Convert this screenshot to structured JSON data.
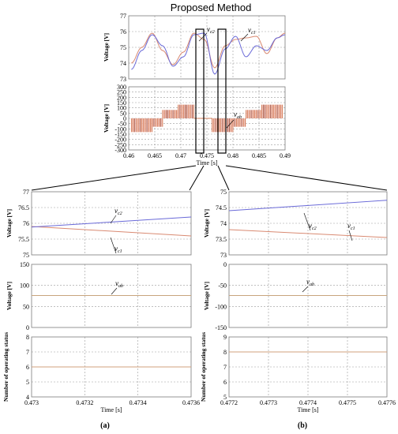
{
  "figure_title": "Proposed Method",
  "colors": {
    "vc1": "#d98a72",
    "vc2": "#6a6ad8",
    "vab": "#c85a2a",
    "status": "#d2a07d",
    "vab_steady": "#c8a57d",
    "grid": "#9a9a9a"
  },
  "chart_data": [
    {
      "id": "top-cap-voltages",
      "type": "line",
      "xlim": [
        0.46,
        0.49
      ],
      "ylim": [
        73,
        77
      ],
      "yticks": [
        "77",
        "76",
        "75",
        "74",
        "73"
      ],
      "ylabel": "Voltage [V]",
      "series": [
        {
          "name": "vc1",
          "x": [
            0.4605,
            0.4625,
            0.4645,
            0.4665,
            0.4685,
            0.4705,
            0.4725,
            0.4745,
            0.4765,
            0.4785,
            0.4805,
            0.4825,
            0.4845,
            0.4865,
            0.4885,
            0.49
          ],
          "y": [
            74.0,
            75.0,
            75.9,
            74.8,
            73.9,
            74.7,
            75.9,
            75.5,
            73.7,
            75.1,
            75.5,
            75.6,
            75.7,
            74.6,
            75.6,
            75.9
          ]
        },
        {
          "name": "vc2",
          "x": [
            0.4605,
            0.4625,
            0.4645,
            0.4665,
            0.4685,
            0.4705,
            0.4725,
            0.4745,
            0.4765,
            0.4785,
            0.4805,
            0.4825,
            0.4845,
            0.4865,
            0.4885,
            0.49
          ],
          "y": [
            73.6,
            74.8,
            75.8,
            75.1,
            73.8,
            74.4,
            75.8,
            75.9,
            73.3,
            74.9,
            75.7,
            74.4,
            75.1,
            74.8,
            75.6,
            75.8
          ]
        }
      ],
      "annotations": [
        "vc2",
        "vc1"
      ]
    },
    {
      "id": "top-vab",
      "type": "line",
      "xlim": [
        0.46,
        0.49
      ],
      "ylim": [
        -300,
        300
      ],
      "yticks": [
        "300",
        "250",
        "200",
        "150",
        "100",
        "50",
        "0",
        "-50",
        "-100",
        "-150",
        "-200",
        "-250",
        "-300"
      ],
      "xticks": [
        "0.46",
        "0.465",
        "0.47",
        "0.475",
        "0.48",
        "0.485",
        "0.49"
      ],
      "xlabel": "Time [s]",
      "ylabel": "Voltage [V]",
      "series": [
        {
          "name": "vab",
          "segments": [
            {
              "x0": 0.4605,
              "x1": 0.4645,
              "level": -100
            },
            {
              "x0": 0.4645,
              "x1": 0.4665,
              "level": -50
            },
            {
              "x0": 0.4665,
              "x1": 0.4695,
              "level": 50
            },
            {
              "x0": 0.4695,
              "x1": 0.4725,
              "level": 100
            },
            {
              "x0": 0.4725,
              "x1": 0.476,
              "level": 0
            },
            {
              "x0": 0.476,
              "x1": 0.48,
              "level": -100
            },
            {
              "x0": 0.48,
              "x1": 0.4825,
              "level": -50
            },
            {
              "x0": 0.4825,
              "x1": 0.4855,
              "level": 50
            },
            {
              "x0": 0.4855,
              "x1": 0.4895,
              "level": 100
            }
          ]
        }
      ],
      "annotations": [
        "vab"
      ]
    },
    {
      "id": "a-cap-voltages",
      "type": "line",
      "xlim": [
        0.473,
        0.4736
      ],
      "ylim": [
        75,
        77
      ],
      "yticks": [
        "77",
        "76.5",
        "76",
        "75.5",
        "75"
      ],
      "ylabel": "Voltage [V]",
      "series": [
        {
          "name": "vc1",
          "x": [
            0.473,
            0.4736
          ],
          "y": [
            75.9,
            75.6
          ]
        },
        {
          "name": "vc2",
          "x": [
            0.473,
            0.4736
          ],
          "y": [
            75.88,
            76.2
          ]
        }
      ],
      "annotations": [
        "vc2",
        "vc1"
      ]
    },
    {
      "id": "a-vab",
      "type": "line",
      "xlim": [
        0.473,
        0.4736
      ],
      "ylim": [
        0,
        150
      ],
      "yticks": [
        "150",
        "100",
        "50",
        "0"
      ],
      "ylabel": "Voltage [V]",
      "series": [
        {
          "name": "vab",
          "x": [
            0.473,
            0.4736
          ],
          "y": [
            76,
            76
          ]
        }
      ],
      "annotations": [
        "vab"
      ]
    },
    {
      "id": "a-status",
      "type": "line",
      "xlim": [
        0.473,
        0.4736
      ],
      "ylim": [
        4,
        8
      ],
      "yticks": [
        "8",
        "7",
        "6",
        "5",
        "4"
      ],
      "xticks": [
        "0.473",
        "0.4732",
        "0.4734",
        "0.4736"
      ],
      "xlabel": "Time [s]",
      "ylabel": "Number of operating status",
      "series": [
        {
          "name": "status",
          "x": [
            0.473,
            0.4736
          ],
          "y": [
            6,
            6
          ]
        }
      ]
    },
    {
      "id": "b-cap-voltages",
      "type": "line",
      "xlim": [
        0.4772,
        0.4776
      ],
      "ylim": [
        73,
        75
      ],
      "yticks": [
        "75",
        "74.5",
        "74",
        "73.5",
        "73"
      ],
      "ylabel": "Voltage [V]",
      "series": [
        {
          "name": "vc2",
          "x": [
            0.4772,
            0.4776
          ],
          "y": [
            74.4,
            74.73
          ]
        },
        {
          "name": "vc1",
          "x": [
            0.4772,
            0.4776
          ],
          "y": [
            73.8,
            73.55
          ]
        }
      ],
      "annotations": [
        "vc2",
        "vc1"
      ]
    },
    {
      "id": "b-vab",
      "type": "line",
      "xlim": [
        0.4772,
        0.4776
      ],
      "ylim": [
        -150,
        0
      ],
      "yticks": [
        "0",
        "-50",
        "-100",
        "-150"
      ],
      "ylabel": "Voltage [V]",
      "series": [
        {
          "name": "vab",
          "x": [
            0.4772,
            0.4776
          ],
          "y": [
            -74,
            -74
          ]
        }
      ],
      "annotations": [
        "vab"
      ]
    },
    {
      "id": "b-status",
      "type": "line",
      "xlim": [
        0.4772,
        0.4776
      ],
      "ylim": [
        5,
        9
      ],
      "yticks": [
        "9",
        "8",
        "7",
        "6",
        "5"
      ],
      "xticks": [
        "0.4772",
        "0.4773",
        "0.4774",
        "0.4775",
        "0.4776"
      ],
      "xlabel": "Time [s]",
      "ylabel": "Number of operating status",
      "series": [
        {
          "name": "status",
          "x": [
            0.4772,
            0.4776
          ],
          "y": [
            8,
            8
          ]
        }
      ]
    }
  ],
  "panel_labels": {
    "a": "(a)",
    "b": "(b)"
  }
}
